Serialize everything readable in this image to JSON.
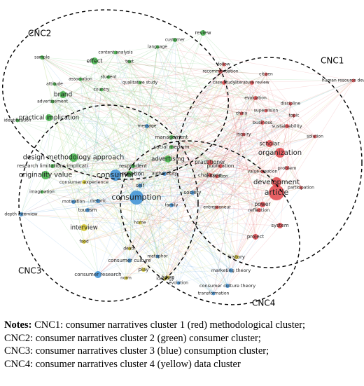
{
  "clusters": [
    {
      "label": "CNC2"
    },
    {
      "label": "CNC1"
    },
    {
      "label": "CNC3"
    },
    {
      "label": "CNC4"
    }
  ],
  "nodes": [
    {
      "label": "review",
      "color": "#3cb043"
    },
    {
      "label": "customer",
      "color": "#3cb043"
    },
    {
      "label": "language",
      "color": "#3cb043"
    },
    {
      "label": "content analysis",
      "color": "#3cb043"
    },
    {
      "label": "text",
      "color": "#3cb043"
    },
    {
      "label": "effect",
      "color": "#3cb043"
    },
    {
      "label": "sample",
      "color": "#3cb043"
    },
    {
      "label": "student",
      "color": "#3cb043"
    },
    {
      "label": "association",
      "color": "#3cb043"
    },
    {
      "label": "qualitative study",
      "color": "#3cb043"
    },
    {
      "label": "attitude",
      "color": "#3cb043"
    },
    {
      "label": "country",
      "color": "#3cb043"
    },
    {
      "label": "brand",
      "color": "#3cb043"
    },
    {
      "label": "advertisement",
      "color": "#3cb043"
    },
    {
      "label": "identification",
      "color": "#3cb043"
    },
    {
      "label": "practical implication",
      "color": "#3cb043"
    },
    {
      "label": "design methodology approach",
      "color": "#3cb043"
    },
    {
      "label": "research limitations implicati",
      "color": "#3cb043"
    },
    {
      "label": "originality value",
      "color": "#3cb043"
    },
    {
      "label": "advertising",
      "color": "#3cb043"
    },
    {
      "label": "respondent",
      "color": "#3cb043"
    },
    {
      "label": "perception",
      "color": "#3cb043"
    },
    {
      "label": "imagination",
      "color": "#3cb043"
    },
    {
      "label": "management",
      "color": "#3cb043"
    },
    {
      "label": "social medium",
      "color": "#3cb043"
    },
    {
      "label": "consumer",
      "color": "#3b8fd6"
    },
    {
      "label": "consumption",
      "color": "#3b8fd6"
    },
    {
      "label": "message",
      "color": "#3b8fd6"
    },
    {
      "label": "self",
      "color": "#3b8fd6"
    },
    {
      "label": "authenticity",
      "color": "#3b8fd6"
    },
    {
      "label": "family",
      "color": "#3b8fd6"
    },
    {
      "label": "motivation",
      "color": "#3b8fd6"
    },
    {
      "label": "tourism",
      "color": "#3b8fd6"
    },
    {
      "label": "rhetoric",
      "color": "#3b8fd6"
    },
    {
      "label": "depth interview",
      "color": "#3b8fd6"
    },
    {
      "label": "interview",
      "color": "#d4c62a"
    },
    {
      "label": "food",
      "color": "#d4c62a"
    },
    {
      "label": "consumer culture",
      "color": "#3b8fd6"
    },
    {
      "label": "consumer research",
      "color": "#3b8fd6"
    },
    {
      "label": "home",
      "color": "#d4c62a"
    },
    {
      "label": "death",
      "color": "#d4c62a"
    },
    {
      "label": "metaphor",
      "color": "#3b8fd6"
    },
    {
      "label": "play",
      "color": "#d4c62a"
    },
    {
      "label": "norm",
      "color": "#d4c62a"
    },
    {
      "label": "future",
      "color": "#d4c62a"
    },
    {
      "label": "history",
      "color": "#d4c62a"
    },
    {
      "label": "marketing theory",
      "color": "#3b8fd6"
    },
    {
      "label": "consumer culture theory",
      "color": "#3b8fd6"
    },
    {
      "label": "transformation",
      "color": "#3b8fd6"
    },
    {
      "label": "evolution",
      "color": "#3b8fd6"
    },
    {
      "label": "ideology",
      "color": "#d4c62a"
    },
    {
      "label": "society",
      "color": "#3b8fd6"
    },
    {
      "label": "consumer experience",
      "color": "#d4c62a"
    },
    {
      "label": "article",
      "color": "#e0454a"
    },
    {
      "label": "development",
      "color": "#e0454a"
    },
    {
      "label": "organization",
      "color": "#e0454a"
    },
    {
      "label": "scholar",
      "color": "#e0454a"
    },
    {
      "label": "practitioner",
      "color": "#e0454a"
    },
    {
      "label": "publication",
      "color": "#e0454a"
    },
    {
      "label": "challenge",
      "color": "#e0454a"
    },
    {
      "label": "innovation",
      "color": "#e0454a"
    },
    {
      "label": "power",
      "color": "#e0454a"
    },
    {
      "label": "reflection",
      "color": "#e0454a"
    },
    {
      "label": "system",
      "color": "#e0454a"
    },
    {
      "label": "project",
      "color": "#e0454a"
    },
    {
      "label": "literature review",
      "color": "#e0454a"
    },
    {
      "label": "recommendation",
      "color": "#e0454a"
    },
    {
      "label": "case study",
      "color": "#e0454a"
    },
    {
      "label": "evaluation",
      "color": "#e0454a"
    },
    {
      "label": "sustainability",
      "color": "#e0454a"
    },
    {
      "label": "business",
      "color": "#e0454a"
    },
    {
      "label": "china",
      "color": "#e0454a"
    },
    {
      "label": "supervision",
      "color": "#e0454a"
    },
    {
      "label": "topic",
      "color": "#e0454a"
    },
    {
      "label": "discipline",
      "color": "#e0454a"
    },
    {
      "label": "human resource development",
      "color": "#e0454a"
    },
    {
      "label": "solution",
      "color": "#e0454a"
    },
    {
      "label": "problem",
      "color": "#e0454a"
    },
    {
      "label": "participation",
      "color": "#e0454a"
    },
    {
      "label": "entrepreneur",
      "color": "#e0454a"
    },
    {
      "label": "follow",
      "color": "#e0454a"
    },
    {
      "label": "citizen",
      "color": "#e0454a"
    },
    {
      "label": "inquiry",
      "color": "#e0454a"
    },
    {
      "label": "value creation",
      "color": "#e0454a"
    }
  ],
  "notes": {
    "heading": "Notes:",
    "lines": [
      "CNC1: consumer narratives cluster 1 (red) methodological cluster;",
      "CNC2: consumer narratives cluster 2 (green) consumer cluster;",
      "CNC3: consumer narratives cluster 3 (blue) consumption cluster;",
      "CNC4: consumer narratives cluster 4 (yellow) data cluster"
    ]
  }
}
